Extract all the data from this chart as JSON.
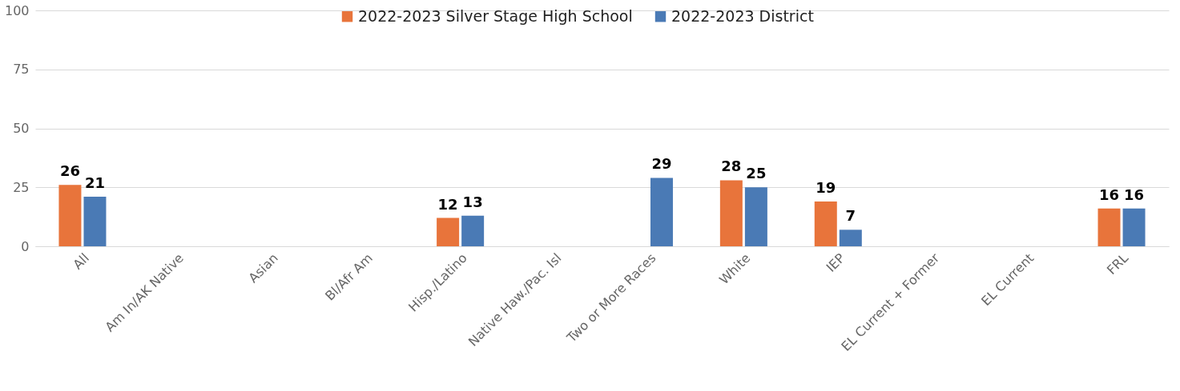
{
  "chart_data": {
    "type": "bar",
    "categories": [
      "All",
      "Am In/AK Native",
      "Asian",
      "Bl/Afr Am",
      "Hisp./Latino",
      "Native Haw./Pac. Isl",
      "Two or More Races",
      "White",
      "IEP",
      "EL Current + Former",
      "EL Current",
      "FRL"
    ],
    "series": [
      {
        "name": "2022-2023 Silver Stage High School",
        "color": "#e8743b",
        "values": [
          26,
          null,
          null,
          null,
          12,
          null,
          null,
          28,
          19,
          null,
          null,
          16
        ]
      },
      {
        "name": "2022-2023 District",
        "color": "#4a7ab5",
        "values": [
          21,
          null,
          null,
          null,
          13,
          null,
          29,
          25,
          7,
          null,
          null,
          16
        ]
      }
    ],
    "ylim": [
      0,
      100
    ],
    "yticks": [
      0,
      25,
      50,
      75,
      100
    ],
    "grid": "y",
    "legend": "top",
    "data_labels": true
  }
}
